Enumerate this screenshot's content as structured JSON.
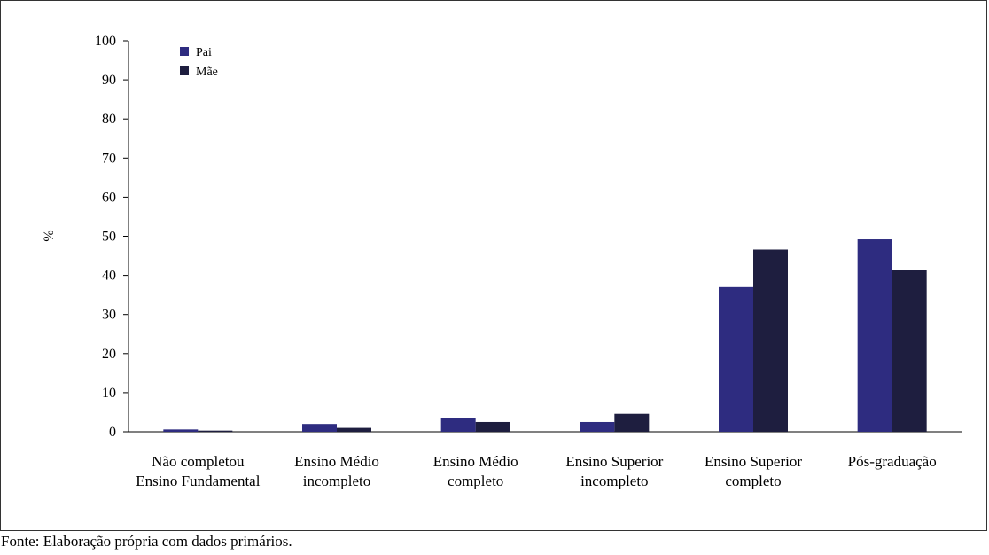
{
  "chart_data": {
    "type": "bar",
    "ylabel": "%",
    "xlabel": "",
    "ylim": [
      0,
      100
    ],
    "yticks": [
      0,
      10,
      20,
      30,
      40,
      50,
      60,
      70,
      80,
      90,
      100
    ],
    "categories": [
      [
        "Não completou",
        "Ensino Fundamental"
      ],
      [
        "Ensino Médio",
        "incompleto"
      ],
      [
        "Ensino Médio",
        "completo"
      ],
      [
        "Ensino Superior",
        "incompleto"
      ],
      [
        "Ensino Superior",
        "completo"
      ],
      [
        "Pós-graduação"
      ]
    ],
    "series": [
      {
        "name": "Pai",
        "color": "#2e2c80",
        "values": [
          0.6,
          2.0,
          3.5,
          2.5,
          37.0,
          49.2
        ]
      },
      {
        "name": "Mãe",
        "color": "#1e1e3f",
        "values": [
          0.3,
          1.0,
          2.5,
          4.6,
          46.6,
          41.4
        ]
      }
    ],
    "legend": "top-left",
    "grid": false
  },
  "source_note": "Fonte: Elaboração própria com dados primários."
}
